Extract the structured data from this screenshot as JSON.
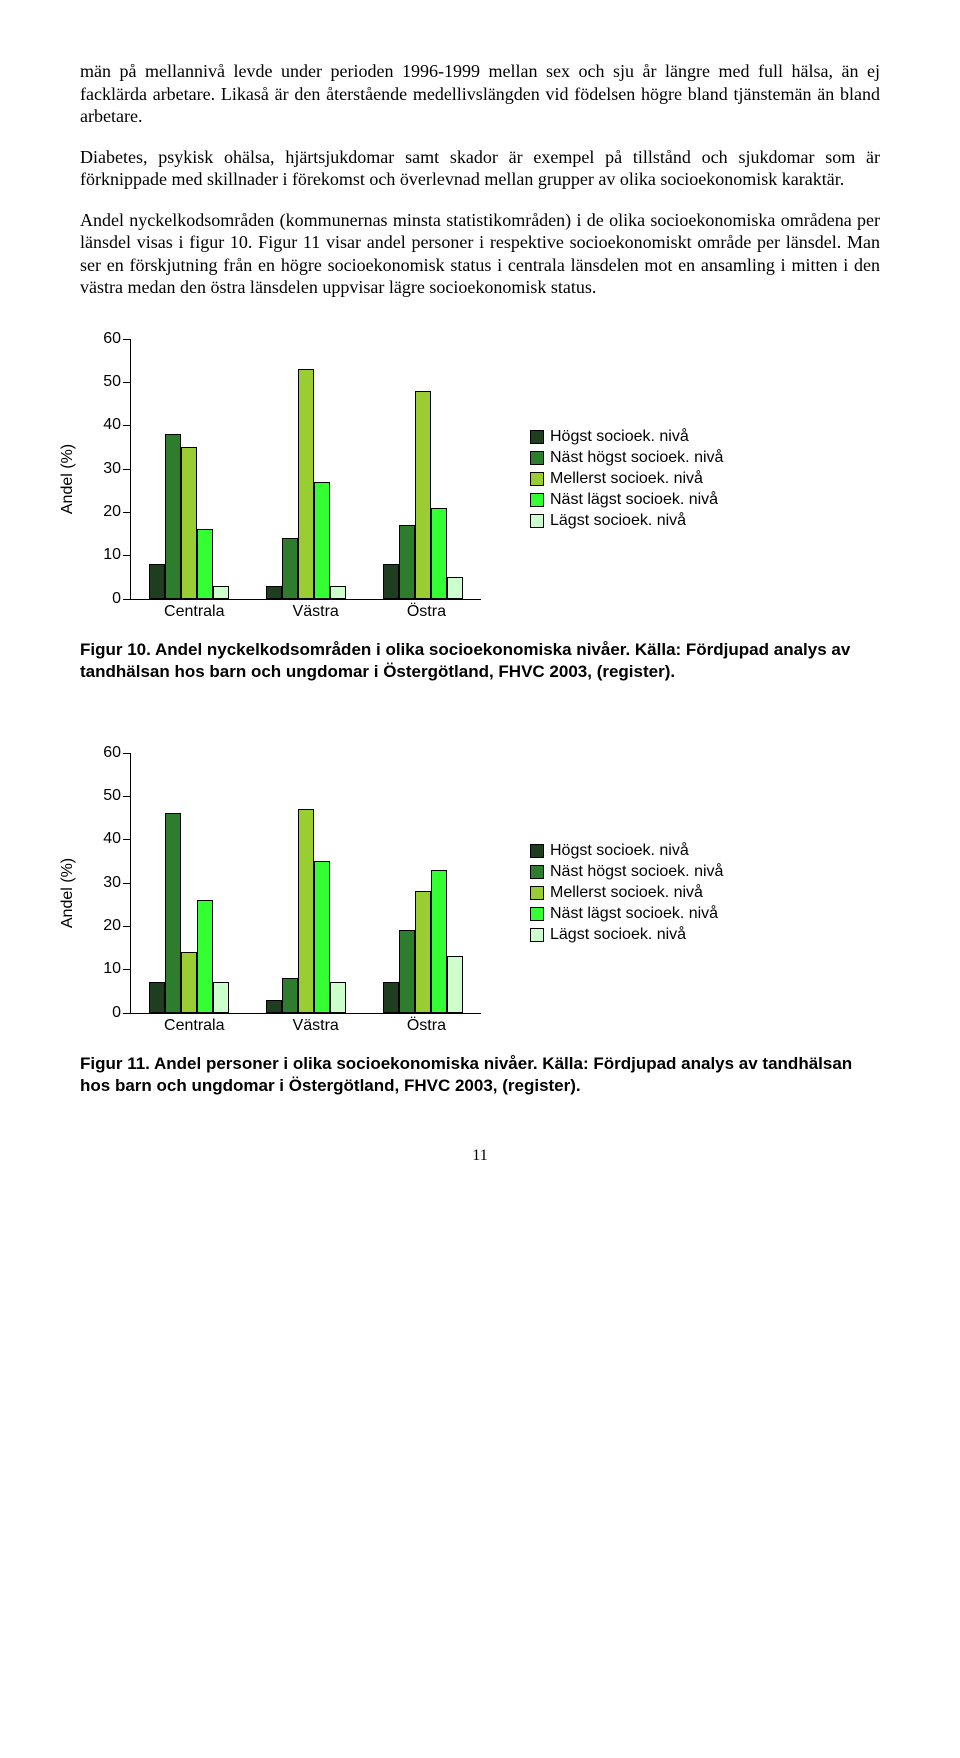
{
  "paragraphs": {
    "p1": "män på mellannivå levde under perioden 1996-1999 mellan sex och sju år längre med full hälsa, än ej facklärda arbetare. Likaså är den återstående medellivslängden vid födelsen högre bland tjänstemän än bland arbetare.",
    "p2": "Diabetes, psykisk ohälsa, hjärtsjukdomar samt skador är exempel på tillstånd och sjukdomar som är förknippade med skillnader i förekomst och överlevnad mellan grupper av olika socioekonomisk karaktär.",
    "p3": "Andel nyckelkodsområden (kommunernas minsta statistikområden) i de olika socioekonomiska områdena per länsdel visas i figur 10. Figur 11 visar andel personer i respektive socioekonomiskt område per länsdel. Man ser en förskjutning från en högre socioekonomisk status i centrala länsdelen mot en ansamling i mitten i den västra medan den östra länsdelen uppvisar lägre socioekonomisk status."
  },
  "legend_labels": {
    "l1": "Högst socioek. nivå",
    "l2": "Näst högst socioek. nivå",
    "l3": "Mellerst socioek. nivå",
    "l4": "Näst lägst socioek. nivå",
    "l5": "Lägst socioek. nivå"
  },
  "colors": {
    "c1": "#1f3d1f",
    "c2": "#2e7d2e",
    "c3": "#9acd32",
    "c4": "#33ff33",
    "c5": "#ccffcc"
  },
  "chart10": {
    "ylabel": "Andel (%)",
    "ymax": 60,
    "ytick_step": 10,
    "categories": [
      "Centrala",
      "Västra",
      "Östra"
    ],
    "series": [
      {
        "name": "l1",
        "values": [
          8,
          3,
          8
        ]
      },
      {
        "name": "l2",
        "values": [
          38,
          14,
          17
        ]
      },
      {
        "name": "l3",
        "values": [
          35,
          53,
          48
        ]
      },
      {
        "name": "l4",
        "values": [
          16,
          27,
          21
        ]
      },
      {
        "name": "l5",
        "values": [
          3,
          3,
          5
        ]
      }
    ]
  },
  "chart11": {
    "ylabel": "Andel (%)",
    "ymax": 60,
    "ytick_step": 10,
    "categories": [
      "Centrala",
      "Västra",
      "Östra"
    ],
    "series": [
      {
        "name": "l1",
        "values": [
          7,
          3,
          7
        ]
      },
      {
        "name": "l2",
        "values": [
          46,
          8,
          19
        ]
      },
      {
        "name": "l3",
        "values": [
          14,
          47,
          28
        ]
      },
      {
        "name": "l4",
        "values": [
          26,
          35,
          33
        ]
      },
      {
        "name": "l5",
        "values": [
          7,
          7,
          13
        ]
      }
    ]
  },
  "captions": {
    "fig10": "Figur 10.  Andel nyckelkodsområden i olika socioekonomiska nivåer. Källa: Fördjupad analys av tandhälsan hos barn och ungdomar i Östergötland, FHVC 2003, (register).",
    "fig11": "Figur 11.  Andel personer i olika socioekonomiska nivåer. Källa: Fördjupad analys av tandhälsan hos barn och ungdomar i Östergötland, FHVC 2003, (register)."
  },
  "page_number": "11"
}
